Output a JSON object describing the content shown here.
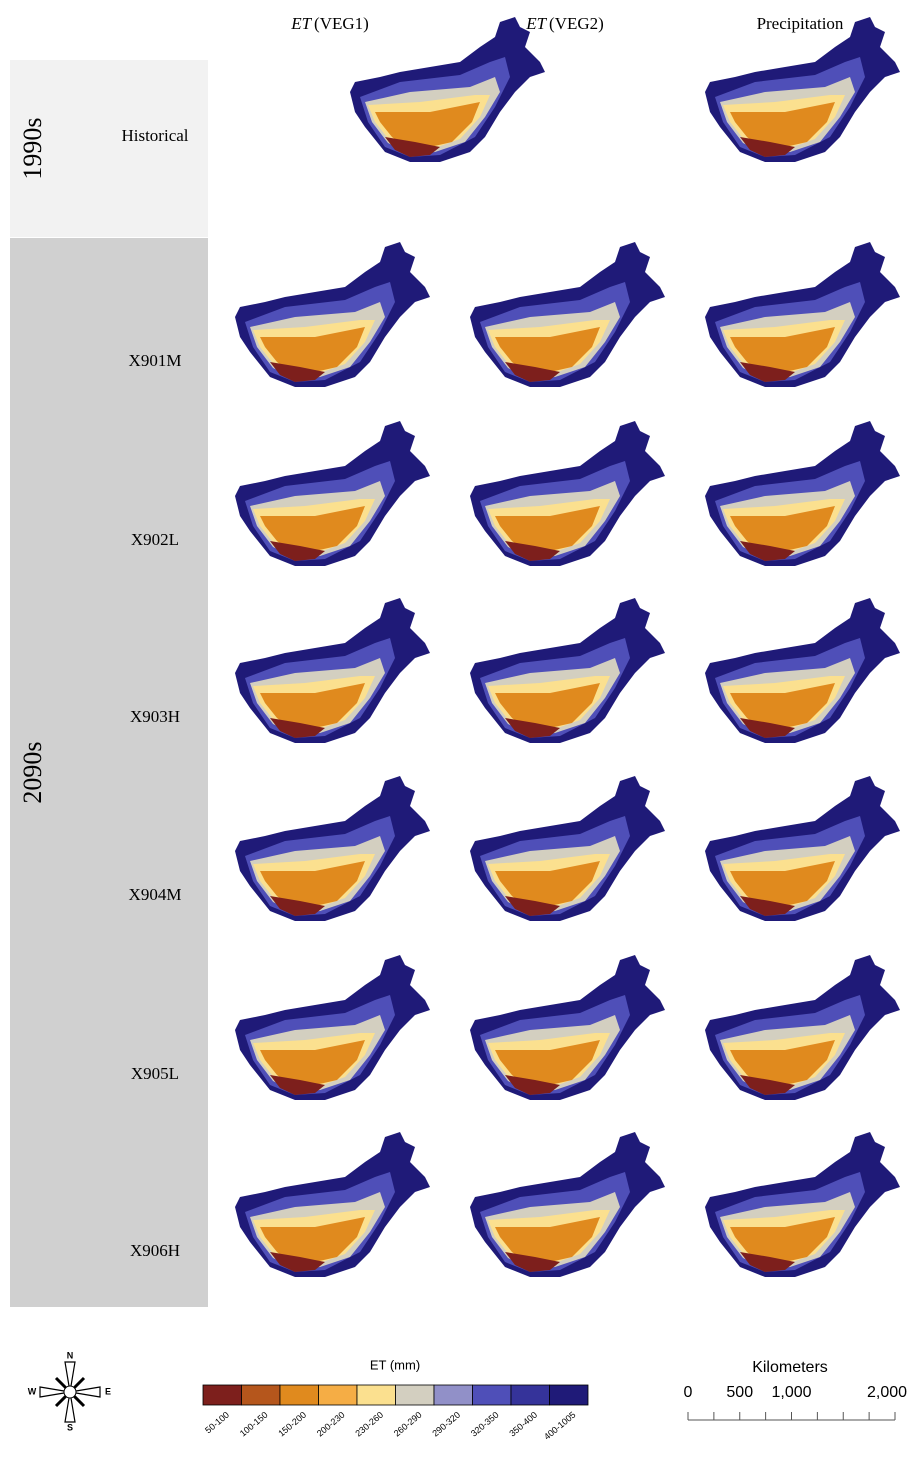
{
  "columns": [
    {
      "label": "ET",
      "qualifier": "(VEG1)"
    },
    {
      "label": "ET",
      "qualifier": "(VEG2)"
    },
    {
      "label": "Precipitation"
    }
  ],
  "groups": [
    {
      "label": "1990s",
      "rows": [
        "Historical"
      ]
    },
    {
      "label": "2090s",
      "rows": [
        "X901M",
        "X902L",
        "X903H",
        "X904M",
        "X905L",
        "X906H"
      ]
    }
  ],
  "legend": {
    "title": "ET (mm)",
    "classes": [
      {
        "label": "50-100",
        "color": "#7d1f1c"
      },
      {
        "label": "100-150",
        "color": "#b5561c"
      },
      {
        "label": "150-200",
        "color": "#e08a1e"
      },
      {
        "label": "200-230",
        "color": "#f5ad45"
      },
      {
        "label": "230-260",
        "color": "#fbe08f"
      },
      {
        "label": "260-290",
        "color": "#d3cfc0"
      },
      {
        "label": "290-320",
        "color": "#9190c8"
      },
      {
        "label": "320-350",
        "color": "#4f4fb8"
      },
      {
        "label": "350-400",
        "color": "#35339a"
      },
      {
        "label": "400-1005",
        "color": "#1f1a78"
      }
    ]
  },
  "scale": {
    "title": "Kilometers",
    "ticks": [
      "0",
      "500",
      "1,000",
      "2,000"
    ]
  },
  "compass": {
    "n": "N",
    "e": "E",
    "s": "S",
    "w": "W"
  }
}
